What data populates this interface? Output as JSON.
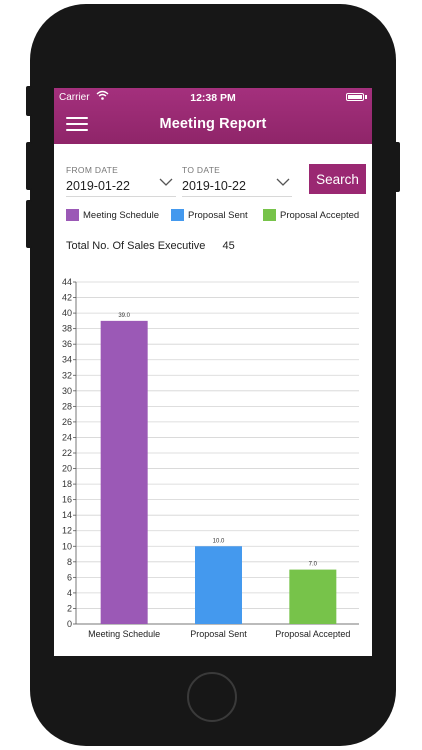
{
  "status_bar": {
    "carrier": "Carrier",
    "time": "12:38 PM"
  },
  "nav": {
    "title": "Meeting Report",
    "menu_icon": "hamburger-menu-icon"
  },
  "filters": {
    "from": {
      "label": "FROM DATE",
      "value": "2019-01-22"
    },
    "to": {
      "label": "TO DATE",
      "value": "2019-10-22"
    },
    "search_label": "Search"
  },
  "legend": [
    {
      "label": "Meeting Schedule",
      "color": "#9b59b6"
    },
    {
      "label": "Proposal Sent",
      "color": "#4499ee"
    },
    {
      "label": "Proposal Accepted",
      "color": "#77c34a"
    }
  ],
  "summary": {
    "label": "Total No. Of Sales Executive",
    "value": "45"
  },
  "chart_data": {
    "type": "bar",
    "categories": [
      "Meeting Schedule",
      "Proposal Sent",
      "Proposal Accepted"
    ],
    "values": [
      39.0,
      10.0,
      7.0
    ],
    "value_labels": [
      "39.0",
      "10.0",
      "7.0"
    ],
    "colors": [
      "#9b59b6",
      "#4499ee",
      "#77c34a"
    ],
    "ylim": [
      0,
      44
    ],
    "ytick_step": 2,
    "grid": true,
    "title": "",
    "xlabel": "",
    "ylabel": ""
  }
}
